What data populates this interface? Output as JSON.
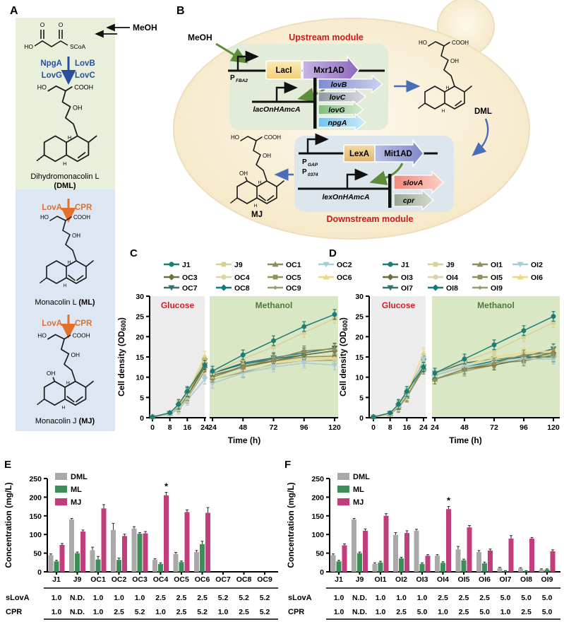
{
  "figure": {
    "panel_labels": {
      "A": "A",
      "B": "B",
      "C": "C",
      "D": "D",
      "E": "E",
      "F": "F"
    }
  },
  "atoms": {
    "ho": "HO",
    "cooh": "COOH",
    "oh": "OH",
    "h": "H",
    "o": "O",
    "scoa": "SCoA"
  },
  "colors": {
    "enzyme_blue": "#2b4fa0",
    "enzyme_orange": "#e0702a",
    "module_title_red": "#cc1a1a",
    "glucose_label": "#d21f26",
    "methanol_label": "#51793e",
    "dml_bar": "#a9a9a9",
    "ml_bar": "#3d8e59",
    "mj_bar": "#c23d7b"
  },
  "panel_a": {
    "meoh": "MeOH",
    "step1_left": [
      "NpgA",
      "LovG"
    ],
    "step1_right": [
      "LovB",
      "LovC"
    ],
    "step2_left": "LovA",
    "step2_right": "CPR",
    "compound1": "Dihydromonacolin L",
    "compound1_abbr": "(DML)",
    "compound2": "Monacolin L ",
    "compound2_abbr": "(ML)",
    "compound3": "Monacolin J ",
    "compound3_abbr": "(MJ)"
  },
  "panel_b": {
    "meoh": "MeOH",
    "upstream_title": "Upstream module",
    "downstream_title": "Downstream module",
    "promoter1_base": "P",
    "promoter1_sub": "FBA2",
    "tf1": "LacI",
    "tf1_ad": "Mxr1AD",
    "promoter2": "lacOnHAmcA",
    "genes": [
      "lovB",
      "lovC",
      "lovG",
      "npgA"
    ],
    "dml": "DML",
    "promoter3a_base": "P",
    "promoter3a_sub": "GAP",
    "promoter3b_base": "P",
    "promoter3b_sub": "0374",
    "tf2": "LexA",
    "tf2_ad": "Mit1AD",
    "promoter4": "lexOnHAmcA",
    "gene_slova": "slovA",
    "gene_cpr": "cpr",
    "mj": "MJ"
  },
  "chart_data": [
    {
      "id": "C",
      "panel_label": "C",
      "type": "line",
      "xlabel": "Time (h)",
      "ylabel": "Cell density (OD600)",
      "ylim": [
        0,
        30
      ],
      "yticks": [
        0,
        5,
        10,
        15,
        20,
        25,
        30
      ],
      "phase_labels": {
        "glucose": "Glucose",
        "methanol": "Methanol"
      },
      "phase_bg_glucose": "#ececec",
      "phase_bg_methanol": "#d9e7c5",
      "x_glucose": [
        0,
        8,
        12,
        16,
        24
      ],
      "xticks_glucose": [
        0,
        8,
        16,
        24
      ],
      "x_methanol": [
        24,
        48,
        72,
        96,
        120
      ],
      "xticks_methanol": [
        24,
        48,
        72,
        96,
        120
      ],
      "err": 1.2,
      "series": [
        {
          "name": "J1",
          "color": "#1d7d74",
          "marker": "circle",
          "glucose": [
            0.2,
            1.2,
            3.3,
            6.5,
            13.0
          ],
          "methanol": [
            11.5,
            15.5,
            19.0,
            22.5,
            25.5
          ]
        },
        {
          "name": "J9",
          "color": "#d8d096",
          "marker": "square",
          "glucose": [
            0.2,
            1.0,
            2.9,
            5.8,
            14.0
          ],
          "methanol": [
            11.0,
            14.5,
            17.5,
            21.0,
            24.5
          ]
        },
        {
          "name": "OC1",
          "color": "#8e8e5c",
          "marker": "triangle",
          "glucose": [
            0.2,
            1.0,
            2.8,
            5.5,
            13.5
          ],
          "methanol": [
            10.0,
            12.5,
            14.5,
            16.5,
            17.0
          ]
        },
        {
          "name": "OC2",
          "color": "#a6cdd8",
          "marker": "triangle-down",
          "glucose": [
            0.2,
            0.8,
            2.1,
            4.3,
            9.5
          ],
          "methanol": [
            8.5,
            11.0,
            12.5,
            13.5,
            13.0
          ]
        },
        {
          "name": "OC3",
          "color": "#6f6f3e",
          "marker": "diamond",
          "glucose": [
            0.2,
            1.0,
            2.7,
            5.3,
            12.5
          ],
          "methanol": [
            10.5,
            12.5,
            14.0,
            15.5,
            16.5
          ]
        },
        {
          "name": "OC4",
          "color": "#d9d4a6",
          "marker": "circle",
          "glucose": [
            0.2,
            0.9,
            2.5,
            5.0,
            12.0
          ],
          "methanol": [
            9.5,
            11.5,
            13.0,
            14.0,
            14.5
          ]
        },
        {
          "name": "OC5",
          "color": "#90905a",
          "marker": "square",
          "glucose": [
            0.2,
            1.0,
            2.7,
            5.5,
            13.0
          ],
          "methanol": [
            10.0,
            12.8,
            14.0,
            15.0,
            15.2
          ]
        },
        {
          "name": "OC6",
          "color": "#ecd87e",
          "marker": "triangle",
          "glucose": [
            0.2,
            1.1,
            3.1,
            6.0,
            15.2
          ],
          "methanol": [
            10.5,
            12.5,
            13.8,
            14.5,
            14.8
          ]
        },
        {
          "name": "OC7",
          "color": "#3a6f74",
          "marker": "triangle-down",
          "glucose": [
            0.2,
            1.1,
            3.0,
            6.0,
            14.0
          ],
          "methanol": [
            11.0,
            13.5,
            14.8,
            16.0,
            17.2
          ]
        },
        {
          "name": "OC8",
          "color": "#127a7a",
          "marker": "diamond",
          "glucose": [
            0.2,
            1.2,
            3.2,
            6.2,
            13.5
          ],
          "methanol": [
            11.0,
            13.2,
            14.5,
            15.5,
            16.5
          ]
        },
        {
          "name": "OC9",
          "color": "#9b9b69",
          "marker": "diamond-small",
          "glucose": [
            0.2,
            0.9,
            2.5,
            4.8,
            11.5
          ],
          "methanol": [
            9.5,
            11.2,
            13.2,
            14.0,
            14.2
          ]
        }
      ]
    },
    {
      "id": "D",
      "panel_label": "D",
      "type": "line",
      "xlabel": "Time (h)",
      "ylabel": "Cell density (OD600)",
      "ylim": [
        0,
        30
      ],
      "yticks": [
        0,
        5,
        10,
        15,
        20,
        25,
        30
      ],
      "phase_labels": {
        "glucose": "Glucose",
        "methanol": "Methanol"
      },
      "phase_bg_glucose": "#ececec",
      "phase_bg_methanol": "#d9e7c5",
      "x_glucose": [
        0,
        8,
        12,
        16,
        24
      ],
      "xticks_glucose": [
        0,
        8,
        16,
        24
      ],
      "x_methanol": [
        24,
        48,
        72,
        96,
        120
      ],
      "xticks_methanol": [
        24,
        48,
        72,
        96,
        120
      ],
      "err": 1.2,
      "series": [
        {
          "name": "J1",
          "color": "#1d7d74",
          "marker": "circle",
          "glucose": [
            0.2,
            1.2,
            3.3,
            6.5,
            12.5
          ],
          "methanol": [
            11.0,
            14.5,
            18.0,
            21.5,
            25.0
          ]
        },
        {
          "name": "J9",
          "color": "#d8d096",
          "marker": "square",
          "glucose": [
            0.2,
            1.0,
            2.9,
            5.8,
            13.0
          ],
          "methanol": [
            11.0,
            14.0,
            16.5,
            20.0,
            23.5
          ]
        },
        {
          "name": "OI1",
          "color": "#8e8e5c",
          "marker": "triangle",
          "glucose": [
            0.2,
            0.9,
            2.6,
            5.2,
            12.0
          ],
          "methanol": [
            9.5,
            12.0,
            13.5,
            15.5,
            16.0
          ]
        },
        {
          "name": "OI2",
          "color": "#a6cdd8",
          "marker": "triangle-down",
          "glucose": [
            0.2,
            0.9,
            2.5,
            5.0,
            14.5
          ],
          "methanol": [
            10.5,
            12.5,
            13.5,
            14.5,
            14.5
          ]
        },
        {
          "name": "OI3",
          "color": "#6f6f3e",
          "marker": "diamond",
          "glucose": [
            0.2,
            0.9,
            2.6,
            5.2,
            12.0
          ],
          "methanol": [
            9.5,
            12.0,
            13.0,
            14.5,
            16.0
          ]
        },
        {
          "name": "OI4",
          "color": "#d9d4a6",
          "marker": "circle",
          "glucose": [
            0.2,
            0.9,
            2.6,
            5.3,
            13.5
          ],
          "methanol": [
            10.5,
            13.0,
            14.5,
            15.5,
            16.0
          ]
        },
        {
          "name": "OI5",
          "color": "#90905a",
          "marker": "square",
          "glucose": [
            0.2,
            1.0,
            2.7,
            5.4,
            12.5
          ],
          "methanol": [
            9.5,
            12.0,
            13.5,
            14.0,
            15.5
          ]
        },
        {
          "name": "OI6",
          "color": "#ecd87e",
          "marker": "triangle",
          "glucose": [
            0.2,
            1.0,
            3.0,
            6.0,
            16.0
          ],
          "methanol": [
            10.5,
            13.0,
            15.0,
            16.0,
            16.5
          ]
        },
        {
          "name": "OI7",
          "color": "#3a6f74",
          "marker": "triangle-down",
          "glucose": [
            0.2,
            1.1,
            3.0,
            6.0,
            14.0
          ],
          "methanol": [
            11.0,
            13.5,
            14.5,
            15.0,
            17.0
          ]
        },
        {
          "name": "OI8",
          "color": "#127a7a",
          "marker": "diamond",
          "glucose": [
            0.2,
            1.1,
            3.1,
            6.0,
            13.0
          ],
          "methanol": [
            10.5,
            12.5,
            14.0,
            15.0,
            15.0
          ]
        },
        {
          "name": "OI9",
          "color": "#9b9b69",
          "marker": "diamond-small",
          "glucose": [
            0.2,
            0.9,
            2.5,
            5.0,
            12.5
          ],
          "methanol": [
            9.5,
            11.5,
            13.0,
            14.5,
            14.5
          ]
        }
      ]
    },
    {
      "id": "E",
      "panel_label": "E",
      "type": "bar",
      "ylabel": "Concentration (mg/L)",
      "ylim": [
        0,
        250
      ],
      "yticks": [
        0,
        50,
        100,
        150,
        200,
        250
      ],
      "categories": [
        "J1",
        "J9",
        "OC1",
        "OC2",
        "OC3",
        "OC4",
        "OC5",
        "OC6",
        "OC7",
        "OC8",
        "OC9"
      ],
      "series": [
        {
          "name": "DML",
          "color": "#a9a9a9",
          "values": [
            45,
            140,
            58,
            112,
            116,
            32,
            48,
            53,
            0,
            0,
            0
          ],
          "err": [
            3,
            3,
            8,
            18,
            5,
            3,
            4,
            4,
            0,
            0,
            0
          ]
        },
        {
          "name": "ML",
          "color": "#3d8e59",
          "values": [
            28,
            50,
            33,
            32,
            102,
            21,
            26,
            74,
            0,
            0,
            0
          ],
          "err": [
            3,
            3,
            8,
            5,
            3,
            3,
            3,
            8,
            0,
            0,
            0
          ]
        },
        {
          "name": "MJ",
          "color": "#c23d7b",
          "values": [
            72,
            108,
            170,
            96,
            103,
            205,
            160,
            158,
            0,
            0,
            0
          ],
          "err": [
            4,
            4,
            10,
            5,
            5,
            8,
            6,
            14,
            0,
            0,
            0
          ]
        }
      ],
      "star_category": "OC4",
      "star": "*",
      "rows": [
        {
          "label": "sLovA",
          "values": [
            "1.0",
            "N.D.",
            "1.0",
            "1.0",
            "1.0",
            "2.5",
            "2.5",
            "2.5",
            "5.2",
            "5.2",
            "5.2"
          ]
        },
        {
          "label": "CPR",
          "values": [
            "1.0",
            "N.D.",
            "1.0",
            "2.5",
            "5.2",
            "1.0",
            "2.5",
            "5.2",
            "1.0",
            "2.5",
            "5.2"
          ]
        }
      ]
    },
    {
      "id": "F",
      "panel_label": "F",
      "type": "bar",
      "ylabel": "Concentration (mg/L)",
      "ylim": [
        0,
        250
      ],
      "yticks": [
        0,
        50,
        100,
        150,
        200,
        250
      ],
      "categories": [
        "J1",
        "J9",
        "OI1",
        "OI2",
        "OI3",
        "OI4",
        "OI5",
        "OI6",
        "OI7",
        "OI8",
        "OI9"
      ],
      "series": [
        {
          "name": "DML",
          "color": "#a9a9a9",
          "values": [
            45,
            140,
            21,
            99,
            110,
            43,
            60,
            53,
            10,
            9,
            6
          ],
          "err": [
            3,
            3,
            3,
            6,
            4,
            3,
            8,
            4,
            2,
            2,
            2
          ]
        },
        {
          "name": "ML",
          "color": "#3d8e59",
          "values": [
            28,
            50,
            25,
            36,
            21,
            24,
            31,
            23,
            2,
            2,
            6
          ],
          "err": [
            3,
            3,
            3,
            3,
            3,
            3,
            3,
            3,
            1,
            1,
            2
          ]
        },
        {
          "name": "MJ",
          "color": "#c23d7b",
          "values": [
            71,
            110,
            150,
            104,
            43,
            168,
            119,
            57,
            89,
            89,
            55
          ],
          "err": [
            4,
            5,
            6,
            6,
            3,
            7,
            5,
            4,
            8,
            3,
            4
          ]
        }
      ],
      "star_category": "OI4",
      "star": "*",
      "rows": [
        {
          "label": "sLovA",
          "values": [
            "1.0",
            "N.D.",
            "1.0",
            "1.0",
            "1.0",
            "2.5",
            "2.5",
            "2.5",
            "5.0",
            "5.0",
            "5.0"
          ]
        },
        {
          "label": "CPR",
          "values": [
            "1.0",
            "N.D.",
            "1.0",
            "2.5",
            "5.0",
            "1.0",
            "2.5",
            "5.0",
            "1.0",
            "2.5",
            "5.0"
          ]
        }
      ]
    }
  ]
}
